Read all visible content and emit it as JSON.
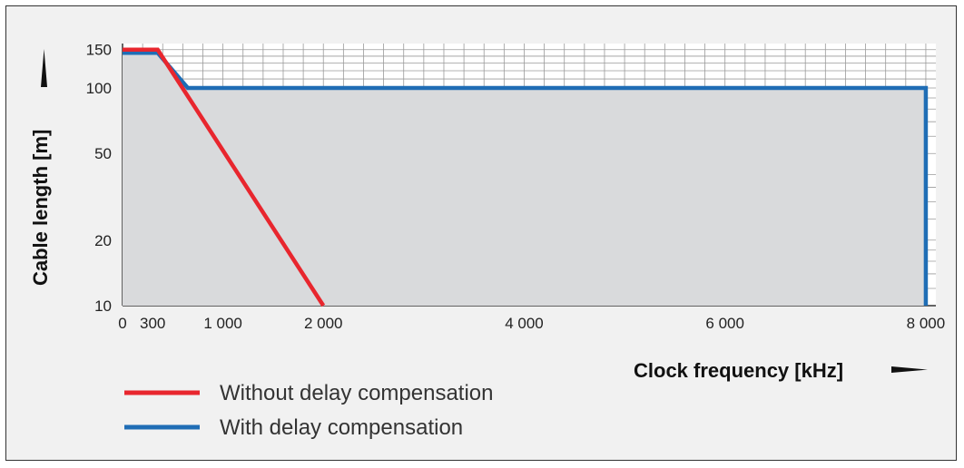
{
  "chart_data": {
    "type": "line",
    "xlabel": "Clock frequency [kHz]",
    "ylabel": "Cable length [m]",
    "xlim": [
      0,
      8100
    ],
    "ylim": [
      10,
      160
    ],
    "y_scale": "log",
    "grid": true,
    "x_ticks": [
      {
        "value": 0,
        "label": "0"
      },
      {
        "value": 300,
        "label": "300"
      },
      {
        "value": 1000,
        "label": "1 000"
      },
      {
        "value": 2000,
        "label": "2 000"
      },
      {
        "value": 4000,
        "label": "4 000"
      },
      {
        "value": 6000,
        "label": "6 000"
      },
      {
        "value": 8000,
        "label": "8 000"
      }
    ],
    "y_ticks": [
      {
        "value": 10,
        "label": "10"
      },
      {
        "value": 20,
        "label": "20"
      },
      {
        "value": 50,
        "label": "50"
      },
      {
        "value": 100,
        "label": "100"
      },
      {
        "value": 150,
        "label": "150"
      }
    ],
    "series": [
      {
        "name": "Without delay compensation",
        "color": "#e8262e",
        "points": [
          [
            0,
            150
          ],
          [
            350,
            150
          ],
          [
            2000,
            10
          ]
        ]
      },
      {
        "name": "With delay compensation",
        "color": "#1f6db5",
        "points": [
          [
            0,
            145
          ],
          [
            350,
            145
          ],
          [
            650,
            100
          ],
          [
            8000,
            100
          ],
          [
            8000,
            10
          ]
        ]
      }
    ],
    "shaded_area_color": "#d9dadc",
    "legend_position": "bottom-left"
  }
}
